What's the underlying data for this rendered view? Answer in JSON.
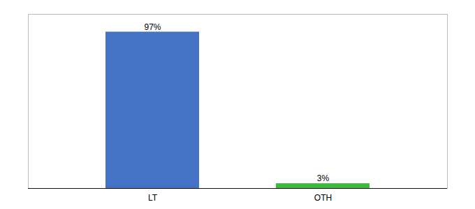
{
  "chart_data": {
    "type": "bar",
    "categories": [
      "LT",
      "OTH"
    ],
    "values": [
      97,
      3
    ],
    "value_labels": [
      "97%",
      "3%"
    ],
    "colors": [
      "#4472c4",
      "#3dbb3d"
    ],
    "ylim": [
      0,
      108
    ],
    "data_labels": true,
    "tick_labels": "x"
  }
}
